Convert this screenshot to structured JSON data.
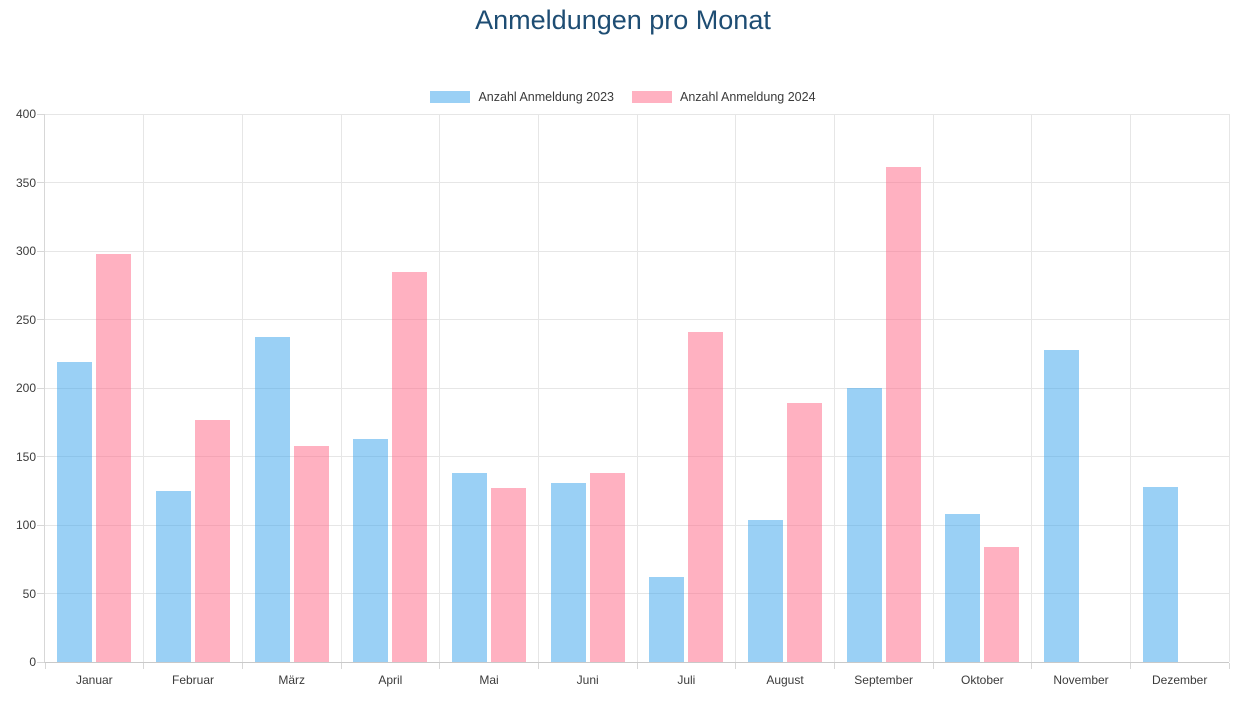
{
  "colors": {
    "title": "#1e4d73",
    "series_2023_blended": "#9acdf2",
    "series_2024_blended": "#ffb1c1",
    "grid": "#e6e6e6",
    "axis_line": "#c9c9c9",
    "axis_text": "#3b3b3b"
  },
  "chart_data": {
    "type": "bar",
    "title": "Anmeldungen pro Monat",
    "categories": [
      "Januar",
      "Februar",
      "März",
      "April",
      "Mai",
      "Juni",
      "Juli",
      "August",
      "September",
      "Oktober",
      "November",
      "Dezember"
    ],
    "series": [
      {
        "name": "Anzahl Anmeldung 2023",
        "color": "rgba(54, 162, 235, 0.5)",
        "values": [
          219,
          125,
          237,
          163,
          138,
          131,
          62,
          104,
          200,
          108,
          228,
          128
        ]
      },
      {
        "name": "Anzahl Anmeldung 2024",
        "color": "rgba(255, 99, 132, 0.5)",
        "values": [
          298,
          177,
          158,
          285,
          127,
          138,
          241,
          189,
          361,
          84,
          0,
          0
        ]
      }
    ],
    "xlabel": "",
    "ylabel": "",
    "ylim": [
      0,
      400
    ],
    "ytick_step": 50,
    "yticks": [
      "0",
      "50",
      "100",
      "150",
      "200",
      "250",
      "300",
      "350",
      "400"
    ],
    "grid": true,
    "legend_position": "top"
  }
}
